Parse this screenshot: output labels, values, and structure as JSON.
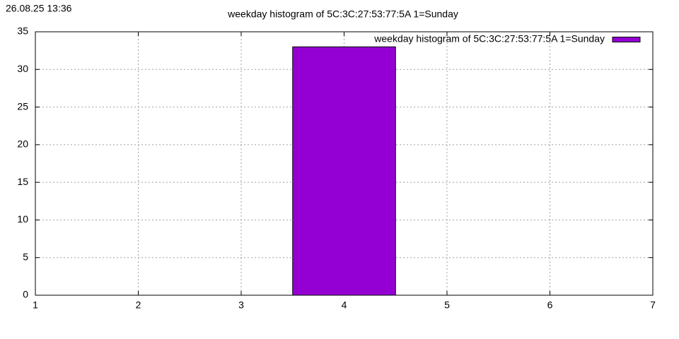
{
  "chart_data": {
    "type": "histogram",
    "title": "weekday histogram of 5C:3C:27:53:77:5A 1=Sunday",
    "timestamp": "26.08.25 13:36",
    "bins": [
      3.5,
      4.5
    ],
    "series": [
      {
        "name": "weekday histogram of 5C:3C:27:53:77:5A 1=Sunday",
        "color": "#9400d3",
        "values": [
          33
        ]
      }
    ],
    "xlim": [
      1,
      7
    ],
    "xticks": [
      1,
      2,
      3,
      4,
      5,
      6,
      7
    ],
    "ylim": [
      0,
      35
    ],
    "yticks": [
      0,
      5,
      10,
      15,
      20,
      25,
      30,
      35
    ],
    "grid": true,
    "legend": "top-right"
  }
}
